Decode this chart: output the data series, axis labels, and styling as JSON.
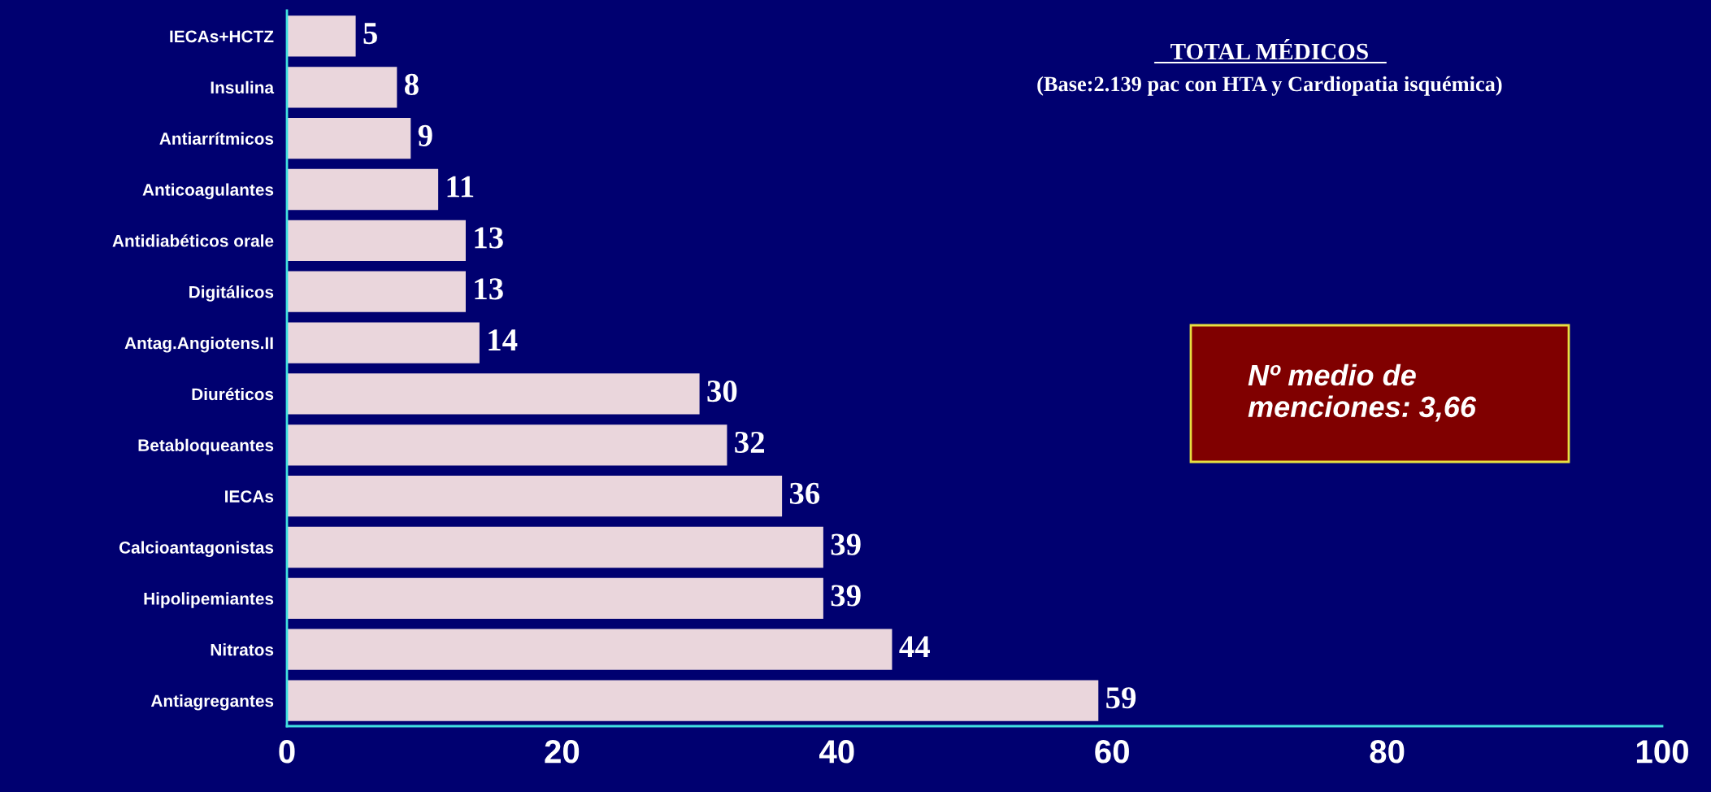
{
  "chart_data": {
    "type": "bar",
    "orientation": "horizontal",
    "title": "TOTAL MÉDICOS",
    "subtitle": "(Base:2.139 pac con HTA y Cardiopatia isquémica)",
    "categories": [
      "IECAs+HCTZ",
      "Insulina",
      "Antiarrítmicos",
      "Anticoagulantes",
      "Antidiabéticos orale",
      "Digitálicos",
      "Antag.Angiotens.II",
      "Diuréticos",
      "Betabloqueantes",
      "IECAs",
      "Calcioantagonistas",
      "Hipolipemiantes",
      "Nitratos",
      "Antiagregantes"
    ],
    "values": [
      5,
      8,
      9,
      11,
      13,
      13,
      14,
      30,
      32,
      36,
      39,
      39,
      44,
      59
    ],
    "color": "#ead6dc",
    "xlim": [
      0,
      100
    ],
    "xticks": [
      0,
      20,
      40,
      60,
      80,
      100
    ],
    "data_labels": true,
    "grid": false,
    "legend": false,
    "annotations": [
      "Nº medio de\nmenciones: 3,66"
    ]
  }
}
